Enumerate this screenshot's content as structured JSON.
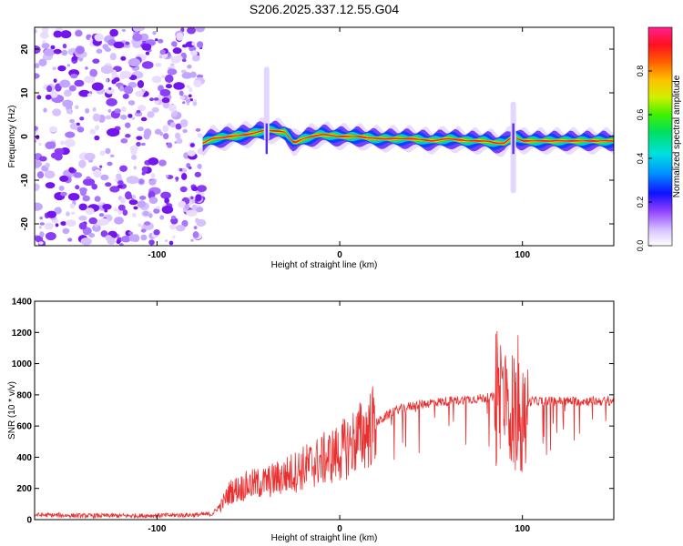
{
  "title": "S206.2025.337.12.55.G04",
  "colors": {
    "signal": "#e83030",
    "purple_dark": "#7a10f0",
    "purple_light": "#c9a8ff"
  },
  "chart_data": [
    {
      "type": "heatmap",
      "title": "S206.2025.337.12.55.G04",
      "xlabel": "Height of straight line (km)",
      "ylabel": "Frequency (Hz)",
      "xlim": [
        -167,
        150
      ],
      "ylim": [
        -25,
        25
      ],
      "xticks": [
        -100,
        0,
        100
      ],
      "yticks": [
        -20,
        -10,
        0,
        10,
        20
      ],
      "colorbar": {
        "label": "Normalized spectral amplitude",
        "range": [
          0,
          1
        ],
        "ticks": [
          "0.0",
          "0.2",
          "0.4",
          "0.6",
          "0.8"
        ],
        "tick_values": [
          0.0,
          0.2,
          0.4,
          0.6,
          0.8
        ]
      },
      "noise_region_x": [
        -167,
        -75
      ],
      "signal_ridge": {
        "x": [
          -75,
          -70,
          -60,
          -50,
          -40,
          -30,
          -25,
          -20,
          -10,
          0,
          10,
          20,
          30,
          40,
          50,
          60,
          70,
          80,
          85,
          90,
          95,
          100,
          110,
          120,
          130,
          140,
          150
        ],
        "freq": [
          -1.5,
          -0.5,
          0.0,
          0.5,
          1.5,
          1.0,
          -1.5,
          -0.5,
          0.5,
          0.0,
          0.0,
          -0.5,
          -0.5,
          -0.5,
          -1.0,
          -0.5,
          -1.0,
          -1.0,
          -1.5,
          -1.5,
          0.0,
          -1.0,
          -1.0,
          -1.0,
          -1.0,
          -1.0,
          -1.0
        ]
      },
      "spikes": [
        {
          "x": 95,
          "freq_range": [
            -13,
            8
          ]
        },
        {
          "x": -40,
          "freq_range": [
            -1,
            16
          ]
        }
      ]
    },
    {
      "type": "line",
      "xlabel": "Height of straight line (km)",
      "ylabel": "SNR (10 * v/v)",
      "xlim": [
        -167,
        150
      ],
      "ylim": [
        0,
        1400
      ],
      "xticks": [
        -100,
        0,
        100
      ],
      "yticks": [
        0,
        200,
        400,
        600,
        800,
        1000,
        1200,
        1400
      ],
      "series": [
        {
          "name": "SNR",
          "x": [
            -167,
            -140,
            -110,
            -80,
            -70,
            -65,
            -60,
            -50,
            -40,
            -30,
            -20,
            -10,
            0,
            10,
            20,
            30,
            40,
            50,
            60,
            70,
            80,
            90,
            95,
            100,
            105,
            110,
            120,
            130,
            140,
            150
          ],
          "values": [
            30,
            25,
            25,
            30,
            35,
            90,
            180,
            220,
            240,
            280,
            330,
            380,
            430,
            520,
            620,
            700,
            730,
            750,
            760,
            770,
            780,
            790,
            750,
            730,
            760,
            760,
            760,
            760,
            760,
            760
          ]
        }
      ]
    }
  ]
}
